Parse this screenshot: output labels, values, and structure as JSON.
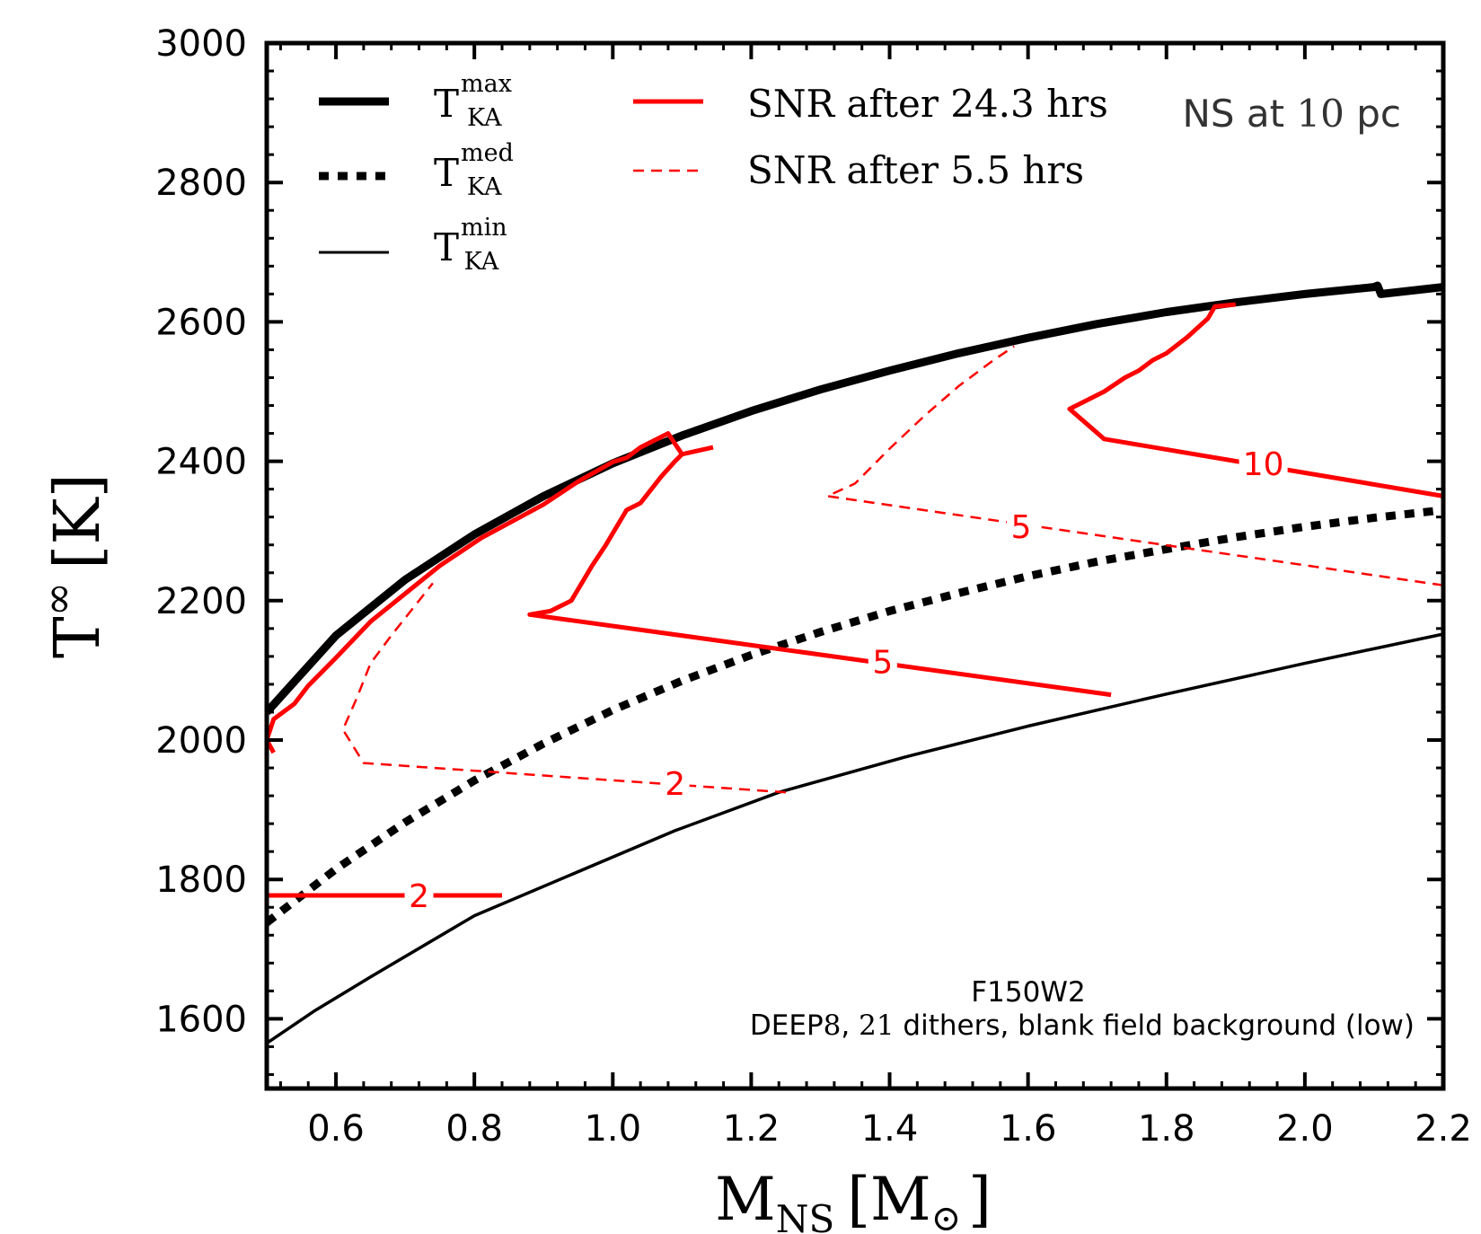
{
  "chart_data": {
    "type": "line",
    "xlim": [
      0.5,
      2.2
    ],
    "ylim": [
      1500,
      3000
    ],
    "x_ticks": [
      "0.6",
      "0.8",
      "1.0",
      "1.2",
      "1.4",
      "1.6",
      "1.8",
      "2.0",
      "2.2"
    ],
    "y_ticks": [
      "1600",
      "1800",
      "2000",
      "2200",
      "2400",
      "2600",
      "2800",
      "3000"
    ],
    "x_tick_values": [
      0.6,
      0.8,
      1.0,
      1.2,
      1.4,
      1.6,
      1.8,
      2.0,
      2.2
    ],
    "y_tick_values": [
      1600,
      1800,
      2000,
      2200,
      2400,
      2600,
      2800,
      3000
    ],
    "xlabel": {
      "main": "M",
      "sub": "NS",
      "open": "[M",
      "sun": "⊙",
      "close": "]"
    },
    "ylabel": {
      "main": "T",
      "sup": "∞",
      "unit": "[K]"
    },
    "annotation_top": {
      "pre": "NS at ",
      "num": "10",
      "post": " pc"
    },
    "annotation_filter": "F150W2",
    "annotation_setup": {
      "a": "DEEP",
      "b": "8",
      "c": ", ",
      "d": "21",
      "e": " dithers, blank field background (low)"
    },
    "legend": {
      "placement": "top",
      "tmax": {
        "base": "T",
        "sub": "KA",
        "sup": "max"
      },
      "tmed": {
        "base": "T",
        "sub": "KA",
        "sup": "med"
      },
      "tmin": {
        "base": "T",
        "sub": "KA",
        "sup": "min"
      },
      "snr_long": "SNR after 24.3 hrs",
      "snr_short": "SNR after 5.5 hrs"
    },
    "colors": {
      "curves": "#000000",
      "snr": "#ff0000"
    },
    "series": [
      {
        "key": "tmax",
        "style": "thick-solid",
        "x": [
          0.5,
          0.6,
          0.7,
          0.8,
          0.9,
          1.0,
          1.1,
          1.2,
          1.3,
          1.4,
          1.5,
          1.6,
          1.7,
          1.8,
          1.9,
          2.0,
          2.1,
          2.105,
          2.11,
          2.2
        ],
        "y": [
          2040,
          2150,
          2230,
          2295,
          2350,
          2397,
          2437,
          2472,
          2503,
          2530,
          2555,
          2577,
          2597,
          2614,
          2628,
          2640,
          2650,
          2652,
          2640,
          2650
        ]
      },
      {
        "key": "tmed",
        "style": "thick-dotted",
        "x": [
          0.5,
          0.6,
          0.7,
          0.8,
          0.9,
          1.0,
          1.1,
          1.2,
          1.3,
          1.4,
          1.5,
          1.6,
          1.7,
          1.8,
          1.9,
          2.0,
          2.1,
          2.2
        ],
        "y": [
          1738,
          1815,
          1882,
          1942,
          1995,
          2043,
          2085,
          2122,
          2155,
          2185,
          2211,
          2235,
          2256,
          2274,
          2291,
          2306,
          2319,
          2330
        ]
      },
      {
        "key": "tmin",
        "style": "thin-solid",
        "x": [
          0.5,
          0.57,
          0.65,
          0.8,
          1.09,
          1.24,
          1.42,
          1.6,
          1.8,
          2.0,
          2.2
        ],
        "y": [
          1565,
          1612,
          1660,
          1748,
          1870,
          1925,
          1975,
          2020,
          2066,
          2110,
          2152
        ]
      },
      {
        "key": "snr_long_2",
        "style": "red-solid",
        "label": "2",
        "x": [
          0.5,
          0.84
        ],
        "y": [
          1777,
          1777
        ]
      },
      {
        "key": "snr_long_5",
        "style": "red-solid",
        "label": "5",
        "x": [
          0.51,
          0.5,
          0.51,
          0.54,
          0.56,
          0.56,
          0.6,
          0.65,
          0.7,
          0.75,
          0.81,
          0.9,
          0.95,
          1.0,
          1.02,
          1.04,
          1.08,
          1.1,
          1.145
        ],
        "y": [
          1982,
          2000,
          2030,
          2052,
          2078,
          2078,
          2118,
          2170,
          2210,
          2250,
          2290,
          2338,
          2371,
          2399,
          2405,
          2420,
          2440,
          2410,
          2420
        ]
      },
      {
        "key": "snr_long_5_lower",
        "style": "red-solid",
        "label": "5",
        "x": [
          0.9,
          0.88,
          0.91,
          0.94,
          0.97,
          0.99,
          1.02,
          1.04,
          1.07,
          1.09,
          1.1
        ],
        "y": [
          2180,
          2180,
          2185,
          2200,
          2250,
          2280,
          2330,
          2340,
          2378,
          2400,
          2410
        ]
      },
      {
        "key": "snr_long_5_h",
        "style": "red-solid",
        "label": "5",
        "x": [
          0.88,
          1.72
        ],
        "y": [
          2180,
          2065
        ]
      },
      {
        "key": "snr_long_10",
        "style": "red-solid",
        "label": "10",
        "x": [
          2.2,
          1.71,
          1.66,
          1.71,
          1.74,
          1.76,
          1.78,
          1.8,
          1.83,
          1.86,
          1.87,
          1.9
        ],
        "y": [
          2350,
          2432,
          2475,
          2500,
          2520,
          2530,
          2545,
          2555,
          2578,
          2605,
          2622,
          2625
        ]
      },
      {
        "key": "snr_short_2",
        "style": "red-dashed",
        "label": "2",
        "x": [
          1.25,
          0.64,
          0.61,
          0.63,
          0.65,
          0.68,
          0.7,
          0.74
        ],
        "y": [
          1925,
          1967,
          2015,
          2060,
          2110,
          2150,
          2175,
          2225
        ]
      },
      {
        "key": "snr_short_5",
        "style": "red-dashed",
        "label": "5",
        "x": [
          2.2,
          1.31,
          1.35,
          1.4,
          1.45,
          1.5,
          1.55,
          1.58
        ],
        "y": [
          2222,
          2350,
          2368,
          2418,
          2465,
          2508,
          2545,
          2565
        ]
      }
    ],
    "contour_labels": [
      {
        "text": "2",
        "x": 0.72,
        "y": 1777
      },
      {
        "text": "5",
        "x": 1.39,
        "y": 2113
      },
      {
        "text": "10",
        "x": 1.94,
        "y": 2397
      },
      {
        "text": "2",
        "x": 1.09,
        "y": 1938
      },
      {
        "text": "5",
        "x": 1.59,
        "y": 2307
      }
    ]
  }
}
